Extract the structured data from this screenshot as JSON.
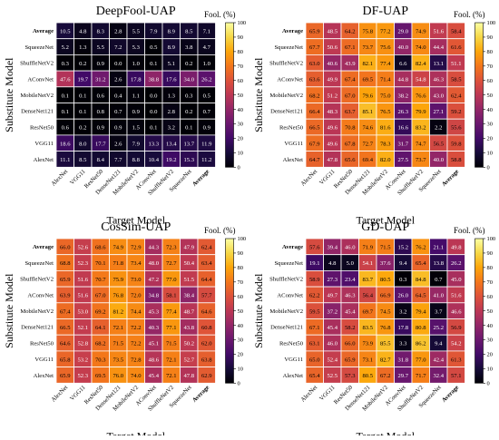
{
  "figure": {
    "rows": [
      "Average",
      "SqueezeNet",
      "ShuffleNetV2",
      "AConvNet",
      "MobileNetV2",
      "DenseNet121",
      "ResNet50",
      "VGG11",
      "AlexNet"
    ],
    "cols": [
      "AlexNet",
      "VGG11",
      "ResNet50",
      "DenseNet121",
      "MobileNetV2",
      "AConvNet",
      "ShuffleNetV2",
      "SqueezeNet",
      "Average"
    ],
    "ylabel": "Substitute Model",
    "xlabel": "Target Model",
    "colorbar_label": "Fool. (%)",
    "colorbar_ticks": [
      "0",
      "10",
      "20",
      "30",
      "40",
      "50",
      "60",
      "70",
      "80",
      "90",
      "100"
    ]
  },
  "chart_data": [
    {
      "type": "heatmap",
      "title": "DeepFool-UAP",
      "colormap": "inferno",
      "vmin": 0,
      "vmax": 100,
      "values": [
        [
          10.5,
          4.8,
          8.3,
          2.8,
          5.5,
          7.9,
          8.9,
          8.5,
          7.1
        ],
        [
          5.2,
          1.3,
          5.5,
          7.2,
          5.3,
          0.5,
          8.9,
          3.8,
          4.7
        ],
        [
          0.3,
          0.2,
          0.9,
          0.0,
          1.0,
          0.1,
          5.1,
          0.2,
          1.0
        ],
        [
          47.6,
          19.7,
          31.2,
          2.6,
          17.8,
          38.8,
          17.6,
          34.0,
          26.2
        ],
        [
          0.1,
          0.1,
          0.6,
          0.4,
          1.1,
          0.0,
          1.3,
          0.3,
          0.5
        ],
        [
          0.1,
          0.1,
          0.8,
          0.7,
          0.9,
          0.0,
          2.8,
          0.2,
          0.7
        ],
        [
          0.6,
          0.2,
          0.9,
          0.9,
          1.5,
          0.1,
          3.2,
          0.1,
          0.9
        ],
        [
          18.6,
          8.0,
          17.7,
          2.6,
          7.9,
          13.3,
          13.4,
          13.7,
          11.9
        ],
        [
          11.1,
          8.5,
          8.4,
          7.7,
          8.8,
          10.4,
          19.2,
          15.3,
          11.2
        ]
      ]
    },
    {
      "type": "heatmap",
      "title": "DF-UAP",
      "colormap": "inferno",
      "vmin": 0,
      "vmax": 100,
      "values": [
        [
          65.9,
          48.5,
          64.2,
          75.8,
          77.2,
          29.0,
          74.9,
          51.6,
          58.4
        ],
        [
          67.7,
          50.6,
          67.1,
          73.7,
          75.6,
          40.0,
          74.0,
          44.4,
          61.6
        ],
        [
          63.0,
          40.6,
          43.9,
          82.1,
          77.4,
          6.6,
          82.4,
          13.1,
          51.1
        ],
        [
          63.6,
          49.9,
          67.4,
          69.5,
          71.4,
          44.8,
          54.8,
          46.3,
          58.5
        ],
        [
          68.2,
          51.2,
          67.0,
          79.6,
          75.0,
          38.2,
          76.6,
          43.0,
          62.4
        ],
        [
          66.4,
          48.3,
          63.7,
          85.1,
          76.5,
          26.3,
          79.9,
          27.1,
          59.2
        ],
        [
          66.5,
          49.6,
          70.8,
          74.6,
          81.6,
          16.6,
          83.2,
          2.2,
          55.6
        ],
        [
          67.9,
          49.6,
          67.8,
          72.7,
          78.3,
          31.7,
          74.7,
          56.5,
          59.8
        ],
        [
          64.7,
          47.8,
          65.6,
          69.4,
          82.0,
          27.5,
          73.7,
          40.0,
          58.8
        ]
      ]
    },
    {
      "type": "heatmap",
      "title": "CosSim-UAP",
      "colormap": "inferno",
      "vmin": 0,
      "vmax": 100,
      "values": [
        [
          66.0,
          52.6,
          68.6,
          74.9,
          72.9,
          44.3,
          72.3,
          47.9,
          62.4
        ],
        [
          68.8,
          52.3,
          70.1,
          71.8,
          73.4,
          48.0,
          72.7,
          50.4,
          63.4
        ],
        [
          65.9,
          51.6,
          70.7,
          75.9,
          73.0,
          47.2,
          77.0,
          51.5,
          64.4
        ],
        [
          63.9,
          51.6,
          67.0,
          76.8,
          72.0,
          34.8,
          58.1,
          38.4,
          57.7
        ],
        [
          67.4,
          53.0,
          69.2,
          81.2,
          74.4,
          45.3,
          77.4,
          48.7,
          64.6
        ],
        [
          66.5,
          52.1,
          64.1,
          72.1,
          72.2,
          40.3,
          77.1,
          43.8,
          60.8
        ],
        [
          64.6,
          52.8,
          68.2,
          71.5,
          72.2,
          45.1,
          71.5,
          50.2,
          62.0
        ],
        [
          65.8,
          53.2,
          70.3,
          73.5,
          72.8,
          48.6,
          72.1,
          52.7,
          63.8
        ],
        [
          65.9,
          52.3,
          69.5,
          76.0,
          74.0,
          45.4,
          72.1,
          47.8,
          62.9
        ]
      ]
    },
    {
      "type": "heatmap",
      "title": "GD-UAP",
      "colormap": "inferno",
      "vmin": 0,
      "vmax": 100,
      "values": [
        [
          57.6,
          39.4,
          46.0,
          71.9,
          71.5,
          15.2,
          76.2,
          21.1,
          49.8
        ],
        [
          19.1,
          4.8,
          5.0,
          54.1,
          37.6,
          9.4,
          65.4,
          13.8,
          26.2
        ],
        [
          58.9,
          27.3,
          23.4,
          83.7,
          80.5,
          0.3,
          84.8,
          0.7,
          45.0
        ],
        [
          62.2,
          49.7,
          46.3,
          56.4,
          66.9,
          26.0,
          64.5,
          41.0,
          51.6
        ],
        [
          59.5,
          37.2,
          45.4,
          69.7,
          74.5,
          3.2,
          79.4,
          3.7,
          46.6
        ],
        [
          67.1,
          45.4,
          58.2,
          83.5,
          76.8,
          17.8,
          80.8,
          25.2,
          56.9
        ],
        [
          63.1,
          46.0,
          66.0,
          73.9,
          85.5,
          3.3,
          86.2,
          9.4,
          54.2
        ],
        [
          65.0,
          52.4,
          65.9,
          73.1,
          82.7,
          31.8,
          77.0,
          42.4,
          61.3
        ],
        [
          65.4,
          52.5,
          57.3,
          80.5,
          67.2,
          29.7,
          71.7,
          32.4,
          57.1
        ]
      ]
    }
  ]
}
